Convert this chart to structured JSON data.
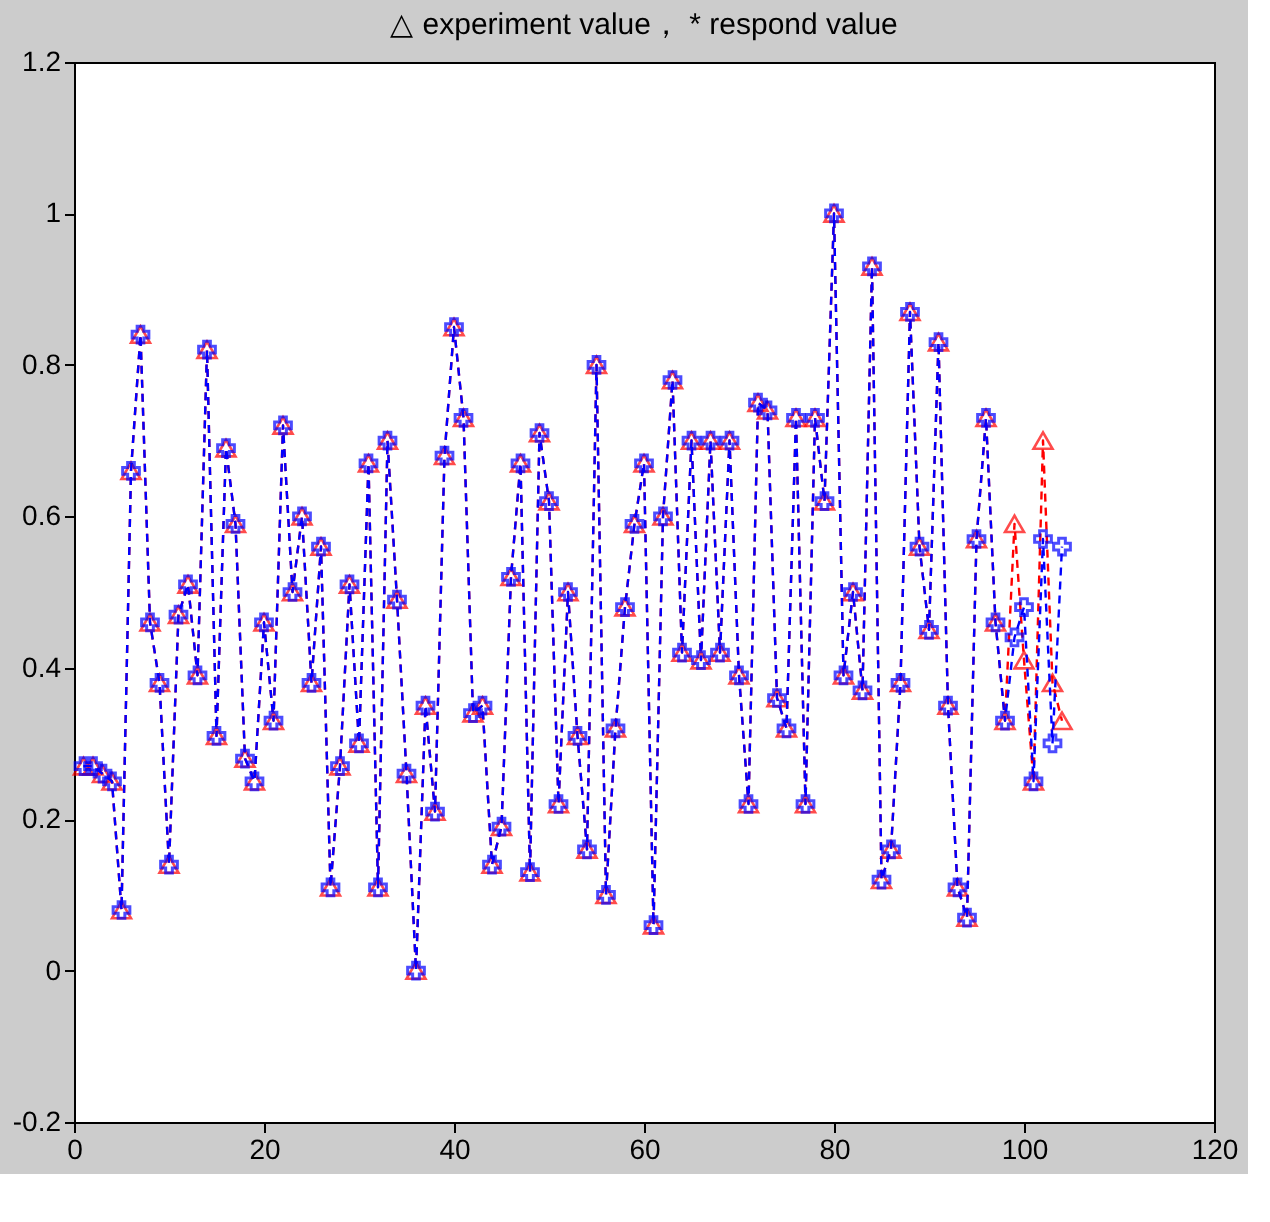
{
  "chart_data": {
    "type": "line",
    "title": "△ experiment value，  * respond value",
    "x": [
      1,
      2,
      3,
      4,
      5,
      6,
      7,
      8,
      9,
      10,
      11,
      12,
      13,
      14,
      15,
      16,
      17,
      18,
      19,
      20,
      21,
      22,
      23,
      24,
      25,
      26,
      27,
      28,
      29,
      30,
      31,
      32,
      33,
      34,
      35,
      36,
      37,
      38,
      39,
      40,
      41,
      42,
      43,
      44,
      45,
      46,
      47,
      48,
      49,
      50,
      51,
      52,
      53,
      54,
      55,
      56,
      57,
      58,
      59,
      60,
      61,
      62,
      63,
      64,
      65,
      66,
      67,
      68,
      69,
      70,
      71,
      72,
      73,
      74,
      75,
      76,
      77,
      78,
      79,
      80,
      81,
      82,
      83,
      84,
      85,
      86,
      87,
      88,
      89,
      90,
      91,
      92,
      93,
      94,
      95,
      96,
      97,
      98,
      99,
      100,
      101,
      102,
      103,
      104
    ],
    "series": [
      {
        "color": "#ff0000",
        "marker": "triangle",
        "line_style": "dashed",
        "values": [
          0.27,
          0.27,
          0.26,
          0.25,
          0.08,
          0.66,
          0.84,
          0.46,
          0.38,
          0.14,
          0.47,
          0.51,
          0.39,
          0.82,
          0.31,
          0.69,
          0.59,
          0.28,
          0.25,
          0.46,
          0.33,
          0.72,
          0.5,
          0.6,
          0.38,
          0.56,
          0.11,
          0.27,
          0.51,
          0.3,
          0.67,
          0.11,
          0.7,
          0.49,
          0.26,
          0.0,
          0.35,
          0.21,
          0.68,
          0.85,
          0.73,
          0.34,
          0.35,
          0.14,
          0.19,
          0.52,
          0.67,
          0.13,
          0.71,
          0.62,
          0.22,
          0.5,
          0.31,
          0.16,
          0.8,
          0.1,
          0.32,
          0.48,
          0.59,
          0.67,
          0.06,
          0.6,
          0.78,
          0.42,
          0.7,
          0.41,
          0.7,
          0.42,
          0.7,
          0.39,
          0.22,
          0.75,
          0.74,
          0.36,
          0.32,
          0.73,
          0.22,
          0.73,
          0.62,
          1.0,
          0.39,
          0.5,
          0.37,
          0.93,
          0.12,
          0.16,
          0.38,
          0.87,
          0.56,
          0.45,
          0.83,
          0.35,
          0.11,
          0.07,
          0.57,
          0.73,
          0.46,
          0.33,
          0.59,
          0.41,
          0.25,
          0.7,
          0.38,
          0.33
        ]
      },
      {
        "color": "#0000ff",
        "marker": "cross",
        "line_style": "dashed",
        "values": [
          0.27,
          0.27,
          0.26,
          0.25,
          0.08,
          0.66,
          0.84,
          0.46,
          0.38,
          0.14,
          0.47,
          0.51,
          0.39,
          0.82,
          0.31,
          0.69,
          0.59,
          0.28,
          0.25,
          0.46,
          0.33,
          0.72,
          0.5,
          0.6,
          0.38,
          0.56,
          0.11,
          0.27,
          0.51,
          0.3,
          0.67,
          0.11,
          0.7,
          0.49,
          0.26,
          0.0,
          0.35,
          0.21,
          0.68,
          0.85,
          0.73,
          0.34,
          0.35,
          0.14,
          0.19,
          0.52,
          0.67,
          0.13,
          0.71,
          0.62,
          0.22,
          0.5,
          0.31,
          0.16,
          0.8,
          0.1,
          0.32,
          0.48,
          0.59,
          0.67,
          0.06,
          0.6,
          0.78,
          0.42,
          0.7,
          0.41,
          0.7,
          0.42,
          0.7,
          0.39,
          0.22,
          0.75,
          0.74,
          0.36,
          0.32,
          0.73,
          0.22,
          0.73,
          0.62,
          1.0,
          0.39,
          0.5,
          0.37,
          0.93,
          0.12,
          0.16,
          0.38,
          0.87,
          0.56,
          0.45,
          0.83,
          0.35,
          0.11,
          0.07,
          0.57,
          0.73,
          0.46,
          0.33,
          0.44,
          0.48,
          0.25,
          0.57,
          0.3,
          0.56
        ]
      }
    ],
    "xlim": [
      0,
      120
    ],
    "xticks": [
      0,
      20,
      40,
      60,
      80,
      100,
      120
    ],
    "ylim": [
      -0.2,
      1.2
    ],
    "yticks": [
      -0.2,
      0,
      0.2,
      0.4,
      0.6,
      0.8,
      1,
      1.2
    ],
    "grid": false
  }
}
